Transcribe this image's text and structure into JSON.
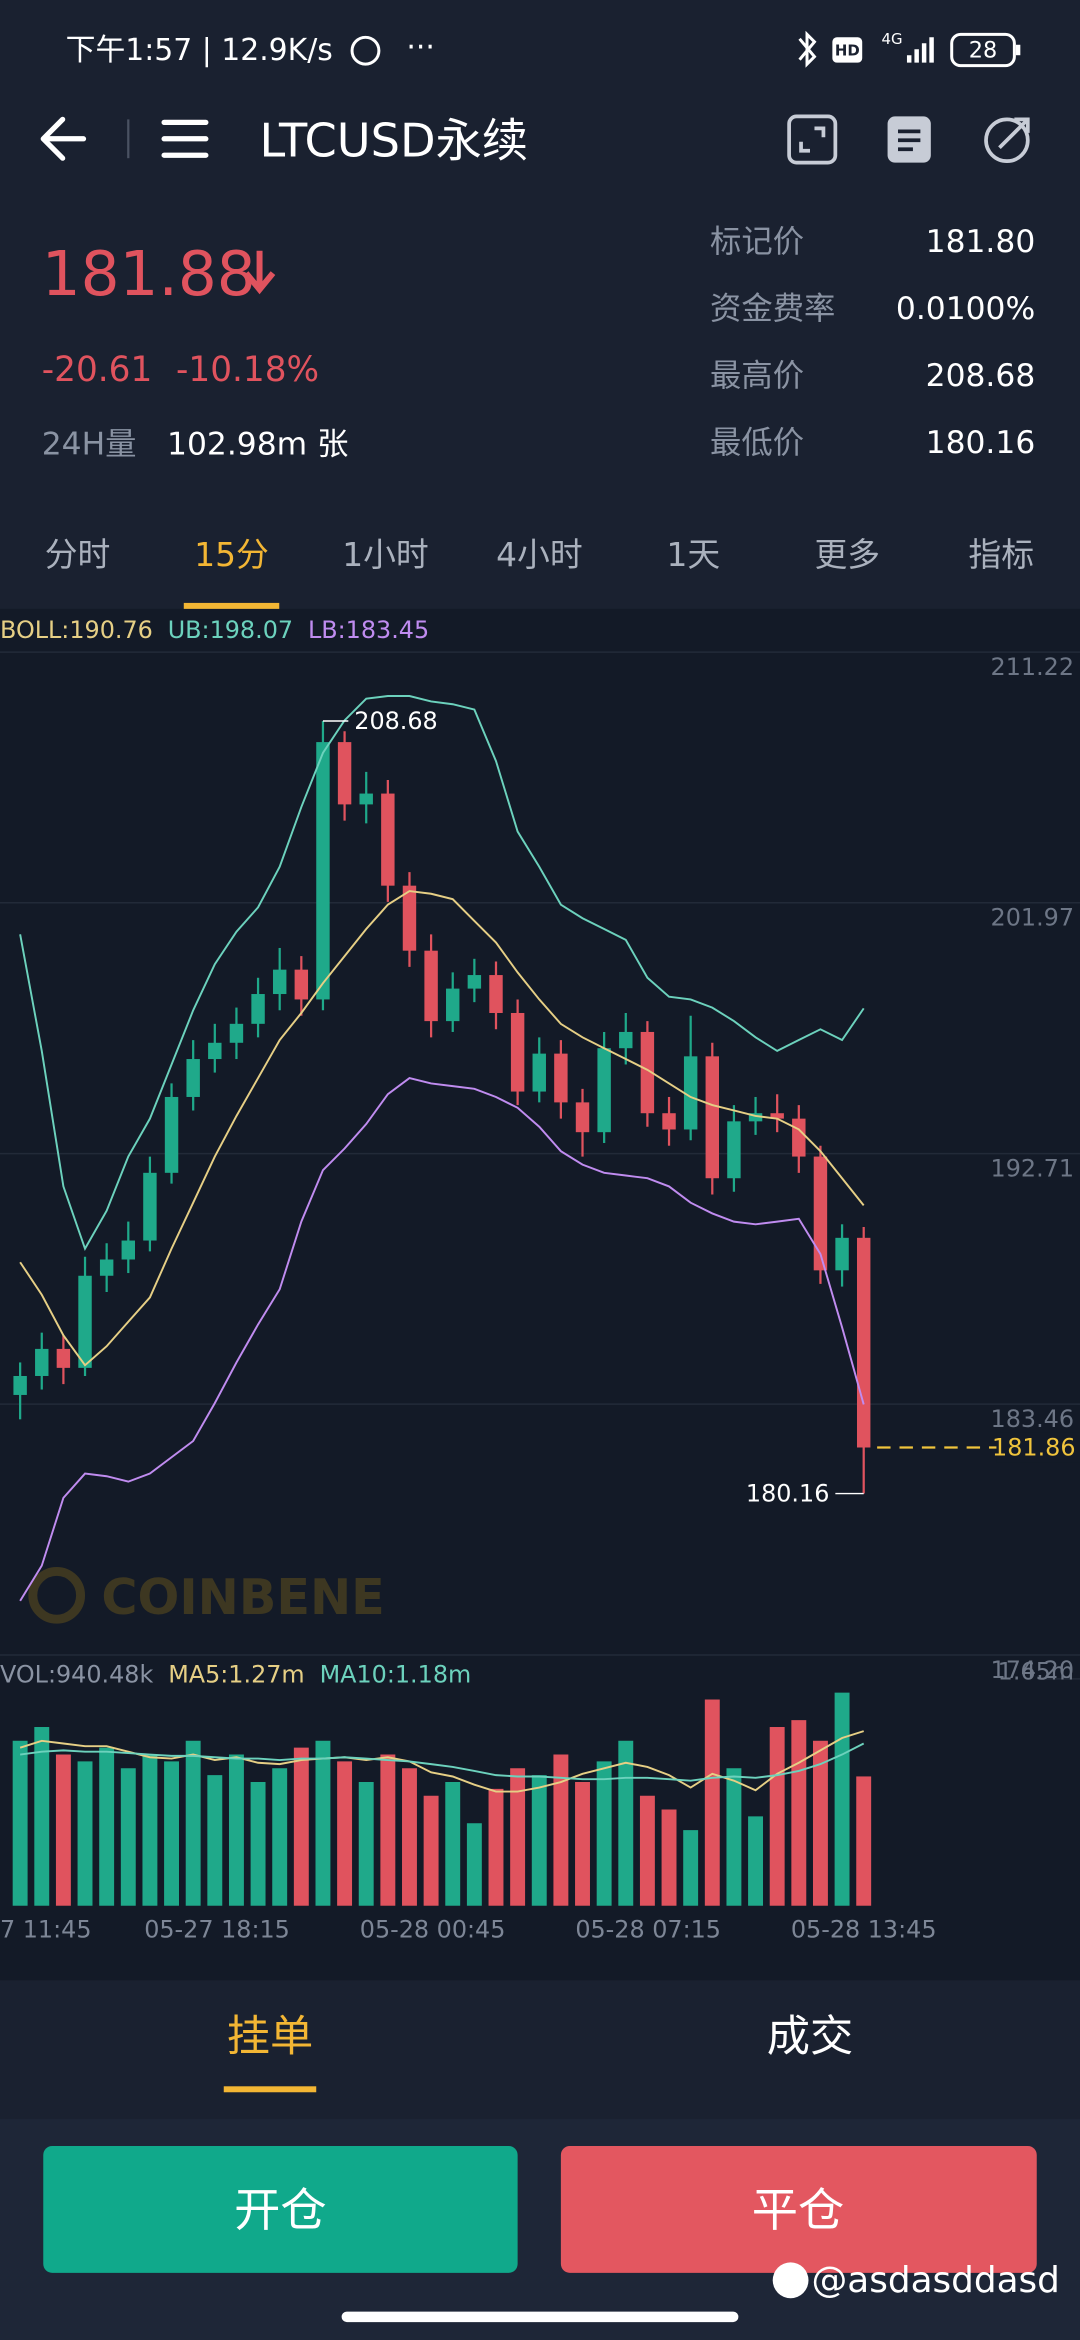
{
  "status_bar": {
    "time": "下午1:57 | 12.9K/s",
    "hd": "HD",
    "network": "4G",
    "battery": "28"
  },
  "header": {
    "title": "LTCUSD永续"
  },
  "ticker": {
    "price": "181.88",
    "change": "-20.61",
    "change_pct": "-10.18%",
    "volume_label": "24H量",
    "volume": "102.98m 张",
    "stats": [
      {
        "label": "标记价",
        "value": "181.80"
      },
      {
        "label": "资金费率",
        "value": "0.0100%"
      },
      {
        "label": "最高价",
        "value": "208.68"
      },
      {
        "label": "最低价",
        "value": "180.16"
      }
    ]
  },
  "timeframes": {
    "items": [
      "分时",
      "15分",
      "1小时",
      "4小时",
      "1天",
      "更多",
      "指标"
    ],
    "active": 1
  },
  "chart_data": {
    "type": "candlestick",
    "ylim": [
      174.2,
      211.22
    ],
    "yticks": [
      211.22,
      201.97,
      192.71,
      183.46,
      {
        "value": 174.2,
        "label": "174.20"
      }
    ],
    "grid": true,
    "up_color": "#1fa98a",
    "down_color": "#e0535e",
    "candles": {
      "open": [
        183.8,
        184.5,
        185.5,
        184.8,
        188.2,
        188.8,
        189.5,
        192.0,
        194.8,
        196.2,
        196.8,
        197.5,
        198.6,
        199.5,
        198.4,
        207.9,
        205.6,
        206.0,
        202.6,
        200.2,
        197.6,
        198.8,
        199.3,
        197.9,
        195.0,
        196.4,
        194.6,
        193.5,
        196.6,
        197.2,
        194.2,
        193.6,
        196.3,
        191.8,
        193.9,
        194.2,
        194.0,
        192.6,
        188.4,
        189.6
      ],
      "high": [
        185.0,
        186.1,
        186.0,
        188.9,
        189.4,
        190.2,
        192.6,
        195.3,
        196.9,
        197.5,
        198.1,
        199.2,
        200.3,
        200.0,
        208.68,
        208.3,
        206.8,
        206.5,
        203.1,
        200.8,
        199.4,
        199.9,
        199.8,
        198.4,
        197.0,
        196.9,
        195.1,
        197.2,
        197.9,
        197.6,
        194.8,
        197.8,
        196.8,
        194.5,
        194.8,
        194.9,
        194.5,
        193.0,
        190.1,
        190.0
      ],
      "low": [
        182.9,
        184.0,
        184.2,
        184.5,
        187.6,
        188.3,
        189.1,
        191.6,
        194.3,
        195.7,
        196.2,
        197.0,
        198.0,
        197.8,
        198.0,
        205.0,
        204.9,
        202.0,
        199.6,
        197.0,
        197.2,
        198.3,
        197.3,
        194.5,
        194.6,
        194.0,
        192.6,
        193.1,
        196.0,
        193.7,
        193.0,
        193.2,
        191.2,
        191.3,
        193.4,
        193.5,
        192.0,
        187.9,
        187.8,
        180.16
      ],
      "close": [
        184.5,
        185.5,
        184.8,
        188.2,
        188.8,
        189.5,
        192.0,
        194.8,
        196.2,
        196.8,
        197.5,
        198.6,
        199.5,
        198.4,
        207.9,
        205.6,
        206.0,
        202.6,
        200.2,
        197.6,
        198.8,
        199.3,
        197.9,
        195.0,
        196.4,
        194.6,
        193.5,
        196.6,
        197.2,
        194.2,
        193.6,
        196.3,
        191.8,
        193.9,
        194.2,
        194.0,
        192.6,
        188.4,
        189.6,
        181.86
      ]
    },
    "series": [
      {
        "name": "BOLL:190.76",
        "color": "#e6cf85",
        "values": [
          188.7,
          187.5,
          186.0,
          184.9,
          185.6,
          186.5,
          187.4,
          189.2,
          190.9,
          192.6,
          194.1,
          195.5,
          196.9,
          197.9,
          199.0,
          200.0,
          201.0,
          201.9,
          202.4,
          202.3,
          202.1,
          201.3,
          200.5,
          199.4,
          198.4,
          197.5,
          197.0,
          196.6,
          196.2,
          195.8,
          195.3,
          194.8,
          194.5,
          194.3,
          194.1,
          194.0,
          193.6,
          192.8,
          191.8,
          190.8
        ]
      },
      {
        "name": "UB:198.07",
        "color": "#6cd2bd",
        "values": [
          200.8,
          196.5,
          191.5,
          189.2,
          190.6,
          192.6,
          194.0,
          196.0,
          198.0,
          199.7,
          200.9,
          201.8,
          203.3,
          205.5,
          207.5,
          208.7,
          209.5,
          209.6,
          209.6,
          209.4,
          209.3,
          209.1,
          207.2,
          204.6,
          203.3,
          201.9,
          201.4,
          201.0,
          200.6,
          199.2,
          198.5,
          198.4,
          198.1,
          197.6,
          197.0,
          196.5,
          196.9,
          197.3,
          196.9,
          198.07
        ]
      },
      {
        "name": "LB:183.45",
        "color": "#c08cf0",
        "values": [
          176.2,
          177.5,
          180.0,
          180.9,
          180.8,
          180.6,
          180.9,
          181.5,
          182.1,
          183.5,
          185.0,
          186.4,
          187.7,
          190.2,
          192.1,
          192.9,
          193.8,
          194.9,
          195.5,
          195.3,
          195.2,
          195.1,
          194.8,
          194.4,
          193.7,
          192.8,
          192.3,
          192.0,
          191.9,
          191.8,
          191.5,
          190.9,
          190.5,
          190.2,
          190.1,
          190.2,
          190.3,
          189.0,
          186.3,
          183.45
        ]
      }
    ],
    "last_price": 181.86,
    "last_price_color": "#f0c43c",
    "x_labels": [
      "7 11:45",
      "05-27 18:15",
      "05-28 00:45",
      "05-28 07:15",
      "05-28 13:45"
    ],
    "watermark": "COINBENE",
    "volume": {
      "name": "VOL:940.48k",
      "values": [
        1.2,
        1.3,
        1.1,
        1.05,
        1.15,
        1.0,
        1.1,
        1.05,
        1.2,
        0.95,
        1.1,
        0.9,
        1.0,
        1.15,
        1.2,
        1.05,
        0.9,
        1.1,
        1.0,
        0.8,
        0.9,
        0.6,
        0.85,
        1.0,
        0.95,
        1.1,
        0.9,
        1.05,
        1.2,
        0.8,
        0.7,
        0.55,
        1.5,
        1.0,
        0.65,
        1.3,
        1.35,
        1.2,
        1.55,
        0.94048
      ],
      "ylim": [
        0,
        1.65
      ],
      "yticks": [
        {
          "value": 1.65,
          "label": "1.65m"
        }
      ],
      "series": [
        {
          "name": "MA5:1.27m",
          "color": "#e6cf85",
          "values": [
            1.15,
            1.2,
            1.18,
            1.16,
            1.16,
            1.12,
            1.08,
            1.07,
            1.1,
            1.06,
            1.08,
            1.04,
            1.03,
            1.06,
            1.07,
            1.08,
            1.06,
            1.08,
            1.05,
            0.97,
            0.94,
            0.88,
            0.83,
            0.83,
            0.86,
            0.9,
            0.96,
            1.0,
            1.04,
            1.01,
            0.95,
            0.86,
            0.96,
            0.91,
            0.84,
            0.96,
            1.04,
            1.13,
            1.22,
            1.27
          ]
        },
        {
          "name": "MA10:1.18m",
          "color": "#6cd2bd",
          "values": [
            1.1,
            1.12,
            1.13,
            1.12,
            1.12,
            1.11,
            1.1,
            1.09,
            1.09,
            1.08,
            1.07,
            1.07,
            1.06,
            1.07,
            1.07,
            1.08,
            1.07,
            1.06,
            1.05,
            1.03,
            1.01,
            0.98,
            0.95,
            0.94,
            0.94,
            0.93,
            0.92,
            0.92,
            0.93,
            0.93,
            0.92,
            0.91,
            0.93,
            0.94,
            0.93,
            0.95,
            0.98,
            1.03,
            1.1,
            1.18
          ]
        }
      ]
    }
  },
  "order_tabs": {
    "items": [
      "挂单",
      "成交"
    ],
    "active": 0
  },
  "buttons": {
    "open": "开仓",
    "close": "平仓"
  },
  "watermark": "@asdasddasd"
}
